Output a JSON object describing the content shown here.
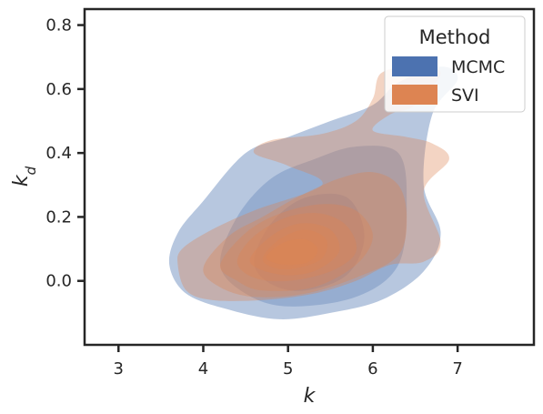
{
  "chart_data": {
    "type": "kde-contour",
    "xlabel": "k",
    "ylabel": "k",
    "ylabel_subscript": "d",
    "xlim": [
      2.6,
      7.9
    ],
    "ylim": [
      -0.2,
      0.85
    ],
    "xticks": [
      3,
      4,
      5,
      6,
      7
    ],
    "yticks": [
      0.0,
      0.2,
      0.4,
      0.6,
      0.8
    ],
    "xtick_labels": [
      "3",
      "4",
      "5",
      "6",
      "7"
    ],
    "ytick_labels": [
      "0.0",
      "0.2",
      "0.4",
      "0.6",
      "0.8"
    ],
    "grid": false,
    "legend": {
      "title": "Method",
      "placement": "top-right",
      "entries": [
        {
          "label": "MCMC",
          "color": "#4c72b0"
        },
        {
          "label": "SVI",
          "color": "#dd8452"
        }
      ]
    },
    "series": [
      {
        "name": "MCMC",
        "color": "#4c72b0",
        "levels": [
          {
            "opacity": 0.4,
            "points": [
              [
                3.6,
                0.05
              ],
              [
                3.7,
                0.15
              ],
              [
                4.0,
                0.25
              ],
              [
                4.5,
                0.4
              ],
              [
                5.0,
                0.45
              ],
              [
                5.5,
                0.5
              ],
              [
                6.0,
                0.55
              ],
              [
                6.3,
                0.62
              ],
              [
                6.8,
                0.67
              ],
              [
                7.0,
                0.63
              ],
              [
                6.7,
                0.52
              ],
              [
                6.6,
                0.3
              ],
              [
                6.8,
                0.15
              ],
              [
                6.6,
                0.03
              ],
              [
                6.1,
                -0.06
              ],
              [
                5.5,
                -0.1
              ],
              [
                4.9,
                -0.12
              ],
              [
                4.3,
                -0.09
              ],
              [
                3.8,
                -0.04
              ]
            ]
          },
          {
            "opacity": 0.3,
            "points": [
              [
                4.2,
                0.05
              ],
              [
                4.4,
                0.2
              ],
              [
                4.8,
                0.32
              ],
              [
                5.3,
                0.38
              ],
              [
                5.8,
                0.42
              ],
              [
                6.3,
                0.4
              ],
              [
                6.4,
                0.25
              ],
              [
                6.3,
                0.05
              ],
              [
                5.8,
                -0.05
              ],
              [
                5.0,
                -0.08
              ],
              [
                4.5,
                -0.04
              ]
            ]
          },
          {
            "opacity": 0.3,
            "points": [
              [
                4.6,
                0.06
              ],
              [
                4.8,
                0.18
              ],
              [
                5.2,
                0.26
              ],
              [
                5.7,
                0.26
              ],
              [
                5.9,
                0.14
              ],
              [
                5.7,
                0.02
              ],
              [
                5.2,
                -0.03
              ],
              [
                4.8,
                -0.01
              ]
            ]
          }
        ]
      },
      {
        "name": "SVI",
        "color": "#dd8452",
        "levels": [
          {
            "opacity": 0.35,
            "points": [
              [
                3.7,
                0.05
              ],
              [
                3.75,
                0.1
              ],
              [
                4.1,
                0.16
              ],
              [
                4.6,
                0.22
              ],
              [
                5.4,
                0.3
              ],
              [
                5.0,
                0.36
              ],
              [
                4.6,
                0.4
              ],
              [
                4.8,
                0.44
              ],
              [
                5.4,
                0.46
              ],
              [
                5.8,
                0.5
              ],
              [
                6.0,
                0.57
              ],
              [
                6.1,
                0.65
              ],
              [
                6.5,
                0.67
              ],
              [
                6.8,
                0.65
              ],
              [
                6.5,
                0.55
              ],
              [
                6.2,
                0.52
              ],
              [
                6.0,
                0.47
              ],
              [
                6.4,
                0.45
              ],
              [
                6.7,
                0.43
              ],
              [
                6.9,
                0.38
              ],
              [
                6.6,
                0.28
              ],
              [
                6.8,
                0.12
              ],
              [
                6.6,
                0.06
              ],
              [
                6.2,
                0.05
              ],
              [
                5.8,
                0.0
              ],
              [
                5.3,
                -0.04
              ],
              [
                4.7,
                -0.06
              ],
              [
                4.1,
                -0.06
              ],
              [
                3.8,
                -0.03
              ]
            ]
          },
          {
            "opacity": 0.35,
            "points": [
              [
                4.0,
                0.04
              ],
              [
                4.3,
                0.14
              ],
              [
                4.7,
                0.2
              ],
              [
                5.1,
                0.26
              ],
              [
                5.6,
                0.32
              ],
              [
                6.0,
                0.34
              ],
              [
                6.3,
                0.3
              ],
              [
                6.4,
                0.2
              ],
              [
                6.3,
                0.08
              ],
              [
                5.8,
                0.01
              ],
              [
                5.2,
                -0.04
              ],
              [
                4.6,
                -0.05
              ],
              [
                4.2,
                -0.02
              ]
            ]
          },
          {
            "opacity": 0.35,
            "points": [
              [
                4.2,
                0.05
              ],
              [
                4.5,
                0.15
              ],
              [
                4.9,
                0.21
              ],
              [
                5.4,
                0.24
              ],
              [
                5.8,
                0.22
              ],
              [
                6.0,
                0.14
              ],
              [
                5.8,
                0.05
              ],
              [
                5.3,
                -0.02
              ],
              [
                4.7,
                -0.03
              ],
              [
                4.4,
                0.0
              ]
            ]
          },
          {
            "opacity": 0.35,
            "points": [
              [
                4.4,
                0.06
              ],
              [
                4.6,
                0.14
              ],
              [
                5.0,
                0.2
              ],
              [
                5.4,
                0.21
              ],
              [
                5.7,
                0.17
              ],
              [
                5.8,
                0.09
              ],
              [
                5.5,
                0.03
              ],
              [
                5.0,
                0.0
              ],
              [
                4.6,
                0.01
              ]
            ]
          },
          {
            "opacity": 0.35,
            "points": [
              [
                4.55,
                0.06
              ],
              [
                4.8,
                0.14
              ],
              [
                5.15,
                0.18
              ],
              [
                5.5,
                0.16
              ],
              [
                5.6,
                0.09
              ],
              [
                5.3,
                0.03
              ],
              [
                4.9,
                0.02
              ]
            ]
          },
          {
            "opacity": 0.35,
            "points": [
              [
                4.7,
                0.07
              ],
              [
                4.9,
                0.13
              ],
              [
                5.2,
                0.16
              ],
              [
                5.45,
                0.13
              ],
              [
                5.4,
                0.07
              ],
              [
                5.1,
                0.04
              ],
              [
                4.85,
                0.04
              ]
            ]
          },
          {
            "opacity": 0.4,
            "points": [
              [
                4.75,
                0.08
              ],
              [
                4.95,
                0.12
              ],
              [
                5.2,
                0.13
              ],
              [
                5.35,
                0.1
              ],
              [
                5.25,
                0.06
              ],
              [
                5.0,
                0.05
              ],
              [
                4.8,
                0.06
              ]
            ]
          }
        ]
      }
    ]
  },
  "colors": {
    "axis": "#262626",
    "background": "#ffffff",
    "mcmc": "#4c72b0",
    "svi": "#dd8452",
    "svi_core": "#7a4a37"
  }
}
